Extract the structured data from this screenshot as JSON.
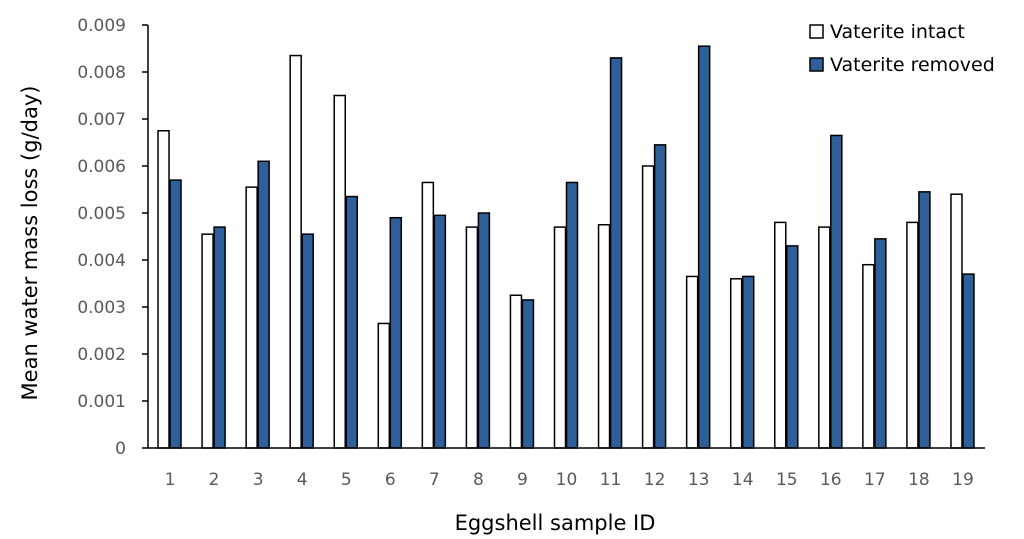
{
  "chart_data": {
    "type": "bar",
    "title": "",
    "xlabel": "Eggshell sample ID",
    "ylabel": "Mean water mass loss (g/day)",
    "categories": [
      "1",
      "2",
      "3",
      "4",
      "5",
      "6",
      "7",
      "8",
      "9",
      "10",
      "11",
      "12",
      "13",
      "14",
      "15",
      "16",
      "17",
      "18",
      "19"
    ],
    "ylim": [
      0,
      0.009
    ],
    "yticks": [
      "0",
      "0.001",
      "0.002",
      "0.003",
      "0.004",
      "0.005",
      "0.006",
      "0.007",
      "0.008",
      "0.009"
    ],
    "grid": false,
    "legend_position": "top-right",
    "series": [
      {
        "name": "Vaterite intact",
        "color": "#ffffff",
        "stroke": "#000000",
        "values": [
          0.00675,
          0.00455,
          0.00555,
          0.00835,
          0.0075,
          0.00265,
          0.00565,
          0.0047,
          0.00325,
          0.0047,
          0.00475,
          0.006,
          0.00365,
          0.0036,
          0.0048,
          0.0047,
          0.0039,
          0.0048,
          0.0054
        ]
      },
      {
        "name": "Vaterite removed",
        "color": "#2e5f98",
        "stroke": "#000000",
        "values": [
          0.0057,
          0.0047,
          0.0061,
          0.00455,
          0.00535,
          0.0049,
          0.00495,
          0.005,
          0.00315,
          0.00565,
          0.0083,
          0.00645,
          0.00855,
          0.00365,
          0.0043,
          0.00665,
          0.00445,
          0.00545,
          0.0037
        ]
      }
    ]
  }
}
